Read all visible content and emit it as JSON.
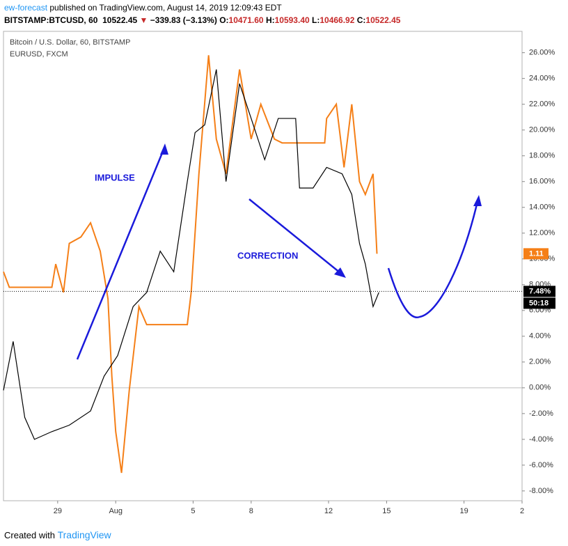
{
  "header": {
    "publisher": "ew-forecast",
    "published": "published on TradingView.com, August 14, 2019 12:09:43 EDT",
    "symbol": "BITSTAMP:BTCUSD, 60",
    "price": "10522.45",
    "change": "−339.83 (−3.13%)",
    "ohlc": [
      {
        "k": "O:",
        "v": "10471.60"
      },
      {
        "k": "H:",
        "v": "10593.40"
      },
      {
        "k": "L:",
        "v": "10466.92"
      },
      {
        "k": "C:",
        "v": "10522.45"
      }
    ]
  },
  "chart_data": {
    "type": "line",
    "series": [
      {
        "name": "Bitcoin / U.S. Dollar, 60, BITSTAMP",
        "color": "#000000",
        "x": [
          -4.8,
          -4.3,
          -3.7,
          -3.2,
          -2.3,
          -1.4,
          -0.3,
          0.4,
          1.1,
          1.9,
          2.6,
          3.3,
          4.0,
          4.7,
          5.1,
          5.6,
          6.2,
          6.7,
          7.4,
          8.0,
          8.7,
          9.4,
          10.3,
          10.5,
          11.2,
          11.9,
          12.7,
          13.2,
          13.6,
          13.9,
          14.3,
          14.6
        ],
        "values": [
          -0.2,
          3.6,
          -2.3,
          -4,
          -3.4,
          -2.9,
          -1.8,
          0.9,
          2.5,
          6.3,
          7.4,
          10.6,
          9,
          16,
          19.8,
          20.4,
          24.7,
          16,
          23.6,
          20.9,
          17.7,
          20.9,
          20.9,
          15.5,
          15.5,
          17.1,
          16.6,
          15,
          11.2,
          9.6,
          6.3,
          7.4
        ]
      },
      {
        "name": "EURUSD, FXCM",
        "color": "#f57f17",
        "x": [
          -4.8,
          -4.5,
          -2.3,
          -2.1,
          -1.7,
          -1.4,
          -0.8,
          -0.3,
          0.2,
          0.6,
          0.8,
          1.0,
          1.3,
          1.7,
          2.2,
          2.6,
          4.7,
          4.9,
          5.3,
          5.8,
          6.2,
          6.7,
          7.4,
          8.0,
          8.5,
          9.2,
          9.6,
          11.8,
          11.9,
          12.4,
          12.8,
          13.2,
          13.6,
          13.9,
          14.3,
          14.5
        ],
        "values": [
          9.0,
          7.8,
          7.8,
          9.6,
          7.4,
          11.2,
          11.7,
          12.8,
          10.6,
          6.9,
          0.9,
          -3.4,
          -6.6,
          -0.2,
          6.3,
          4.9,
          4.9,
          7.4,
          16.6,
          25.8,
          19.3,
          16.6,
          24.7,
          19.3,
          22,
          19.3,
          19.0,
          19.0,
          20.9,
          22,
          17.1,
          22,
          16,
          15,
          16.6,
          10.4
        ]
      }
    ],
    "xlim": [
      -4.8,
      22
    ],
    "xticks": [
      {
        "value": -2,
        "label": "29"
      },
      {
        "value": 1,
        "label": "Aug"
      },
      5,
      8,
      12,
      15,
      19,
      {
        "value": 22,
        "label": "2"
      }
    ],
    "ylim": [
      -8.6,
      26.9
    ],
    "yticks": [
      {
        "value": 26,
        "label": "26.00%"
      },
      {
        "value": 24,
        "label": "24.00%"
      },
      {
        "value": 22,
        "label": "22.00%"
      },
      {
        "value": 20,
        "label": "20.00%"
      },
      {
        "value": 18,
        "label": "18.00%"
      },
      {
        "value": 16,
        "label": "16.00%"
      },
      {
        "value": 14,
        "label": "14.00%"
      },
      {
        "value": 12,
        "label": "12.00%"
      },
      {
        "value": 10,
        "label": "10.00%"
      },
      {
        "value": 8,
        "label": "8.00%"
      },
      {
        "value": 6,
        "label": "6.00%"
      },
      {
        "value": 4,
        "label": "4.00%"
      },
      {
        "value": 2,
        "label": "2.00%"
      },
      {
        "value": 0,
        "label": "0.00%"
      },
      {
        "value": -2,
        "label": "-2.00%"
      },
      {
        "value": -4,
        "label": "-4.00%"
      },
      {
        "value": -6,
        "label": "-6.00%"
      },
      {
        "value": -8,
        "label": "-8.00%"
      }
    ],
    "last_value": {
      "value": 7.48,
      "label": "7.48%"
    },
    "eurusd_last": 1.11,
    "countdown": "50:18",
    "annotations": [
      "IMPULSE",
      "CORRECTION"
    ]
  },
  "footer": {
    "created": "Created with",
    "brand": "TradingView"
  }
}
